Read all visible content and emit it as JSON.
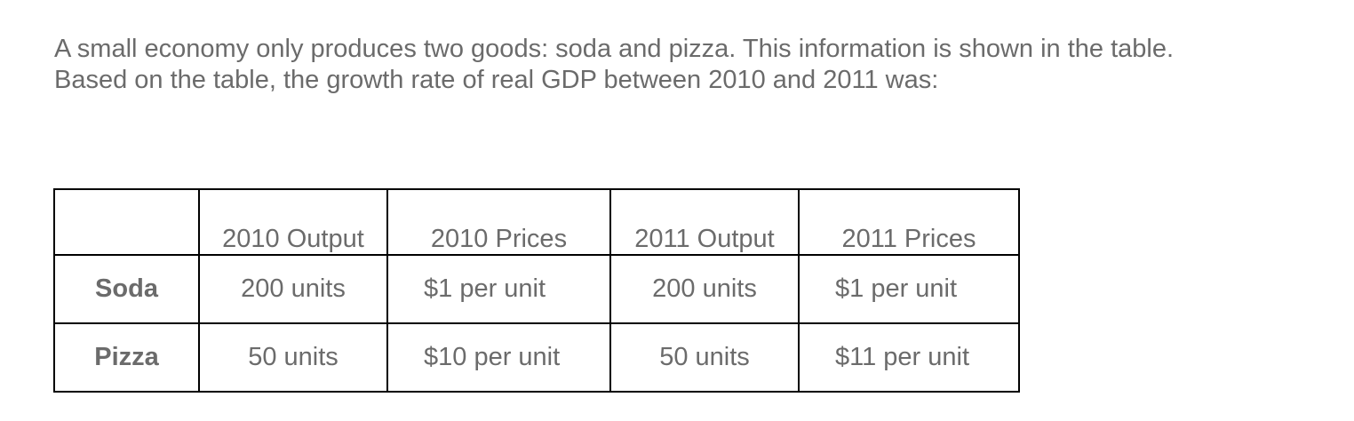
{
  "question": {
    "line1": "A small economy only produces two goods: soda and pizza. This information is shown in the table.",
    "line2": "Based on the table, the growth rate of real GDP between 2010 and 2011 was:"
  },
  "table": {
    "headers": [
      "",
      "2010 Output",
      "2010 Prices",
      "2011 Output",
      "2011 Prices"
    ],
    "rows": [
      {
        "label": "Soda",
        "output_2010": "200 units",
        "prices_2010": "$1 per unit",
        "output_2011": "200 units",
        "prices_2011": "$1 per unit"
      },
      {
        "label": "Pizza",
        "output_2010": "50 units",
        "prices_2010": "$10 per unit",
        "output_2011": "50 units",
        "prices_2011": "$11 per unit"
      }
    ]
  }
}
